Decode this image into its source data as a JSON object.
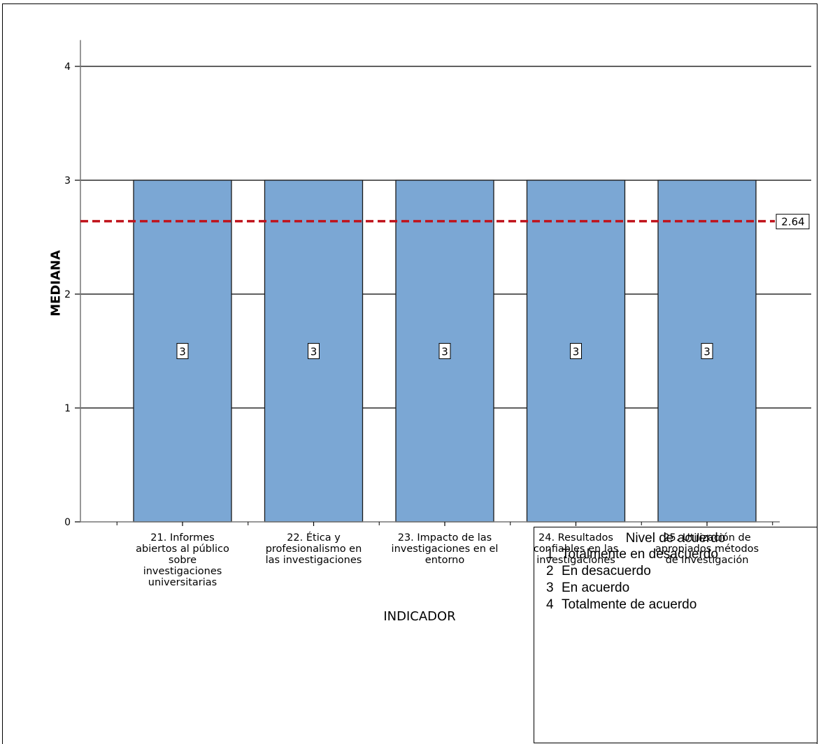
{
  "chart_data": {
    "type": "bar",
    "categories": [
      [
        "21. Informes",
        "abiertos al público",
        "sobre",
        "investigaciones",
        "universitarias"
      ],
      [
        "22. Ética y",
        "profesionalismo en",
        "las investigaciones"
      ],
      [
        "23. Impacto de las",
        "investigaciones en el",
        "entorno"
      ],
      [
        "24. Resultados",
        "confiables en las",
        "investigaciones"
      ],
      [
        "25. Utilización de",
        "apropiados métodos",
        "de investigación"
      ]
    ],
    "values": [
      3,
      3,
      3,
      3,
      3
    ],
    "value_labels": [
      "3",
      "3",
      "3",
      "3",
      "3"
    ],
    "xlabel": "INDICADOR",
    "ylabel": "MEDIANA",
    "ylim": [
      0,
      4.2
    ],
    "yticks": [
      "0",
      "1",
      "2",
      "3",
      "4"
    ],
    "reference_line": {
      "value": 2.64,
      "label": "2.64",
      "style": "dashed"
    },
    "grid": true,
    "colors": {
      "bar": "#7ba7d4",
      "reference": "#c0141c"
    }
  },
  "legend": {
    "title": "Nivel de acuerdo",
    "items": [
      {
        "num": "1",
        "label": "Totalmente en desacuerdo"
      },
      {
        "num": "2",
        "label": "En desacuerdo"
      },
      {
        "num": "3",
        "label": "En acuerdo"
      },
      {
        "num": "4",
        "label": "Totalmente de acuerdo"
      }
    ]
  }
}
